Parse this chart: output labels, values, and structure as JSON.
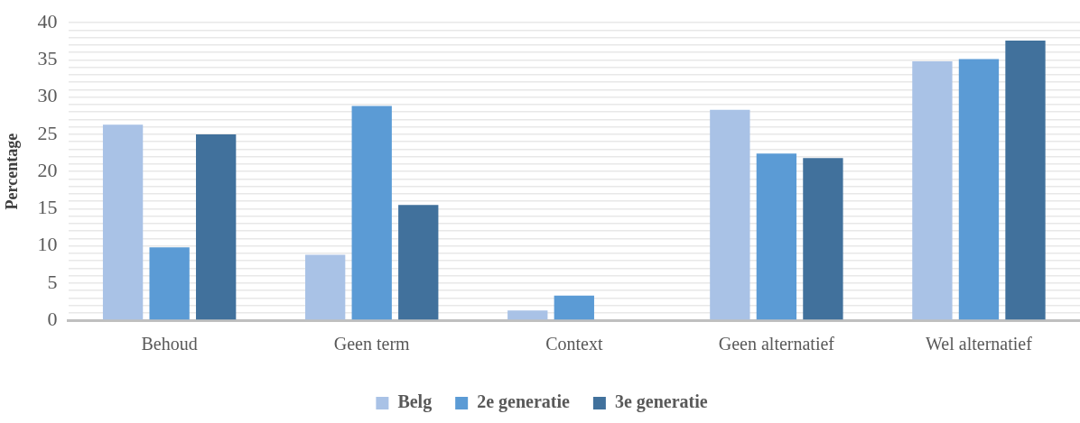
{
  "chart_data": {
    "type": "bar",
    "ylabel": "Percentage",
    "categories": [
      "Behoud",
      "Geen term",
      "Context",
      "Geen alternatief",
      "Wel alternatief"
    ],
    "series": [
      {
        "name": "Belg",
        "color": "#a9c2e6",
        "values": [
          26.3,
          8.8,
          1.3,
          28.3,
          34.8
        ]
      },
      {
        "name": "2e generatie",
        "color": "#5b9bd5",
        "values": [
          9.8,
          28.8,
          3.3,
          22.4,
          35.1
        ]
      },
      {
        "name": "3e generatie",
        "color": "#41719c",
        "values": [
          25.0,
          15.5,
          0,
          21.8,
          37.6
        ]
      }
    ],
    "ylim": [
      0,
      40
    ],
    "yticks": [
      0,
      {
        "value": 1,
        "label": null
      },
      {
        "value": 2,
        "label": null
      },
      {
        "value": 3,
        "label": null
      },
      {
        "value": 4,
        "label": null
      },
      5,
      {
        "value": 6,
        "label": null
      },
      {
        "value": 7,
        "label": null
      },
      {
        "value": 8,
        "label": null
      },
      {
        "value": 9,
        "label": null
      },
      10,
      {
        "value": 11,
        "label": null
      },
      {
        "value": 12,
        "label": null
      },
      {
        "value": 13,
        "label": null
      },
      {
        "value": 14,
        "label": null
      },
      15,
      {
        "value": 16,
        "label": null
      },
      {
        "value": 17,
        "label": null
      },
      {
        "value": 18,
        "label": null
      },
      {
        "value": 19,
        "label": null
      },
      20,
      {
        "value": 21,
        "label": null
      },
      {
        "value": 22,
        "label": null
      },
      {
        "value": 23,
        "label": null
      },
      {
        "value": 24,
        "label": null
      },
      25,
      {
        "value": 26,
        "label": null
      },
      {
        "value": 27,
        "label": null
      },
      {
        "value": 28,
        "label": null
      },
      {
        "value": 29,
        "label": null
      },
      30,
      {
        "value": 31,
        "label": null
      },
      {
        "value": 32,
        "label": null
      },
      {
        "value": 33,
        "label": null
      },
      {
        "value": 34,
        "label": null
      },
      35,
      {
        "value": 36,
        "label": null
      },
      {
        "value": 37,
        "label": null
      },
      {
        "value": 38,
        "label": null
      },
      {
        "value": 39,
        "label": null
      },
      40
    ],
    "grid": true,
    "legend": "bottom"
  }
}
